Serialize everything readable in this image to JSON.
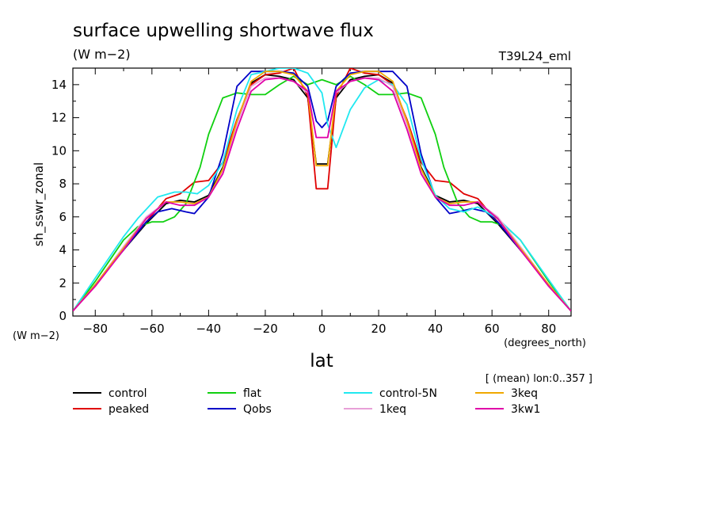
{
  "chart_data": {
    "type": "line",
    "title": "surface upwelling shortwave flux",
    "subtitle_units": "(W m−2)",
    "run_label": "T39L24_eml",
    "ylabel": "sh_sswr_zonal",
    "yunits": "(W m−2)",
    "xlabel": "lat",
    "xunits": "(degrees_north)",
    "note": "[ (mean) lon:0..357 ]",
    "xlim": [
      -87.9,
      87.9
    ],
    "ylim": [
      0,
      15
    ],
    "xticks": [
      -80,
      -60,
      -40,
      -20,
      0,
      20,
      40,
      60,
      80
    ],
    "yticks": [
      0,
      2,
      4,
      6,
      8,
      10,
      12,
      14
    ],
    "xtick_labels": [
      "−80",
      "−60",
      "−40",
      "−20",
      "0",
      "20",
      "40",
      "60",
      "80"
    ],
    "ytick_labels": [
      "0",
      "2",
      "4",
      "6",
      "8",
      "10",
      "12",
      "14"
    ],
    "series": [
      {
        "name": "control",
        "color": "#000000",
        "x": [
          -87.9,
          -80,
          -70,
          -62,
          -55,
          -50,
          -45,
          -40,
          -35,
          -30,
          -25,
          -20,
          -15,
          -10,
          -5,
          -2,
          0,
          2,
          5,
          10,
          15,
          20,
          25,
          30,
          35,
          40,
          45,
          50,
          55,
          62,
          70,
          80,
          87.9
        ],
        "y": [
          0.3,
          1.9,
          4.0,
          5.6,
          6.8,
          7.0,
          6.9,
          7.3,
          9.0,
          11.8,
          14.1,
          14.6,
          14.5,
          14.3,
          13.2,
          9.2,
          9.2,
          9.2,
          13.2,
          14.3,
          14.5,
          14.6,
          14.1,
          11.8,
          9.0,
          7.3,
          6.9,
          7.0,
          6.8,
          5.6,
          4.0,
          1.9,
          0.3
        ]
      },
      {
        "name": "peaked",
        "color": "#e00000",
        "x": [
          -87.9,
          -80,
          -70,
          -62,
          -55,
          -50,
          -45,
          -40,
          -35,
          -30,
          -25,
          -20,
          -15,
          -10,
          -5,
          -2,
          0,
          2,
          5,
          10,
          15,
          20,
          25,
          30,
          35,
          40,
          45,
          50,
          55,
          62,
          70,
          80,
          87.9
        ],
        "y": [
          0.3,
          1.9,
          4.0,
          5.7,
          7.1,
          7.4,
          8.1,
          8.2,
          9.3,
          11.9,
          14.0,
          14.6,
          14.7,
          15.0,
          13.3,
          7.7,
          7.7,
          7.7,
          13.3,
          15.0,
          14.7,
          14.6,
          14.0,
          11.9,
          9.3,
          8.2,
          8.1,
          7.4,
          7.1,
          5.7,
          4.0,
          1.9,
          0.3
        ]
      },
      {
        "name": "flat",
        "color": "#10d010",
        "x": [
          -87.9,
          -80,
          -70,
          -65,
          -60,
          -56,
          -52,
          -48,
          -43,
          -40,
          -35,
          -30,
          -25,
          -20,
          -15,
          -10,
          -5,
          0,
          5,
          10,
          15,
          20,
          25,
          30,
          35,
          40,
          43,
          48,
          52,
          56,
          60,
          65,
          70,
          80,
          87.9
        ],
        "y": [
          0.3,
          2.1,
          4.6,
          5.4,
          5.7,
          5.7,
          6.0,
          6.8,
          9.0,
          11.0,
          13.2,
          13.5,
          13.4,
          13.4,
          14.0,
          14.5,
          14.0,
          14.3,
          14.0,
          14.5,
          14.0,
          13.4,
          13.4,
          13.5,
          13.2,
          11.0,
          9.0,
          6.8,
          6.0,
          5.7,
          5.7,
          5.4,
          4.6,
          2.1,
          0.3
        ]
      },
      {
        "name": "Qobs",
        "color": "#0000c8",
        "x": [
          -87.9,
          -80,
          -70,
          -62,
          -58,
          -53,
          -48,
          -45,
          -40,
          -35,
          -30,
          -25,
          -20,
          -15,
          -10,
          -5,
          -2,
          0,
          2,
          5,
          10,
          15,
          20,
          25,
          30,
          35,
          40,
          45,
          48,
          53,
          58,
          62,
          70,
          80,
          87.9
        ],
        "y": [
          0.3,
          1.9,
          4.0,
          5.7,
          6.3,
          6.5,
          6.3,
          6.2,
          7.2,
          9.8,
          13.9,
          14.8,
          14.8,
          14.8,
          14.7,
          13.9,
          11.8,
          11.4,
          11.8,
          13.9,
          14.7,
          14.8,
          14.8,
          14.8,
          13.9,
          9.8,
          7.2,
          6.2,
          6.3,
          6.5,
          6.3,
          5.7,
          4.0,
          1.9,
          0.3
        ]
      },
      {
        "name": "control-5N",
        "color": "#20e8f0",
        "x": [
          -87.9,
          -80,
          -70,
          -65,
          -58,
          -52,
          -48,
          -44,
          -40,
          -35,
          -30,
          -25,
          -20,
          -15,
          -10,
          -5,
          0,
          2,
          5,
          10,
          15,
          20,
          25,
          30,
          35,
          40,
          45,
          50,
          55,
          62,
          70,
          80,
          87.9
        ],
        "y": [
          0.3,
          2.3,
          4.8,
          5.9,
          7.2,
          7.5,
          7.5,
          7.4,
          7.9,
          9.3,
          12.5,
          14.6,
          14.8,
          15.0,
          15.0,
          14.7,
          13.5,
          11.6,
          10.2,
          12.5,
          13.8,
          14.3,
          14.0,
          12.8,
          9.5,
          7.3,
          6.5,
          6.3,
          6.6,
          5.9,
          4.6,
          2.2,
          0.3
        ]
      },
      {
        "name": "1keq",
        "color": "#e8a0d8",
        "x": [
          -87.9,
          -80,
          -70,
          -62,
          -55,
          -50,
          -45,
          -40,
          -35,
          -30,
          -25,
          -20,
          -15,
          -10,
          -5,
          -2,
          0,
          2,
          5,
          10,
          15,
          20,
          25,
          30,
          35,
          40,
          45,
          50,
          55,
          62,
          70,
          80,
          87.9
        ],
        "y": [
          0.3,
          1.9,
          4.2,
          6.0,
          6.9,
          6.9,
          6.8,
          7.2,
          8.8,
          11.6,
          13.9,
          14.4,
          14.4,
          14.2,
          13.5,
          10.8,
          10.8,
          10.8,
          13.5,
          14.2,
          14.4,
          14.4,
          13.9,
          11.6,
          8.8,
          7.2,
          6.8,
          6.9,
          6.9,
          6.0,
          4.2,
          1.9,
          0.3
        ]
      },
      {
        "name": "3keq",
        "color": "#f0a800",
        "x": [
          -87.9,
          -80,
          -70,
          -62,
          -55,
          -50,
          -45,
          -40,
          -35,
          -30,
          -25,
          -20,
          -15,
          -10,
          -5,
          -2,
          0,
          2,
          5,
          10,
          15,
          20,
          25,
          30,
          35,
          40,
          45,
          50,
          55,
          62,
          70,
          80,
          87.9
        ],
        "y": [
          0.3,
          1.9,
          4.1,
          5.9,
          6.9,
          6.9,
          6.8,
          7.2,
          8.9,
          11.8,
          14.2,
          14.8,
          14.8,
          14.6,
          13.6,
          9.1,
          9.1,
          9.1,
          13.6,
          14.6,
          14.8,
          14.8,
          14.2,
          11.8,
          8.9,
          7.2,
          6.8,
          6.9,
          6.9,
          5.9,
          4.1,
          1.9,
          0.3
        ]
      },
      {
        "name": "3kw1",
        "color": "#e000a8",
        "x": [
          -87.9,
          -80,
          -70,
          -62,
          -55,
          -50,
          -45,
          -40,
          -35,
          -30,
          -25,
          -20,
          -15,
          -10,
          -5,
          -2,
          0,
          2,
          5,
          10,
          15,
          20,
          25,
          30,
          35,
          40,
          45,
          50,
          55,
          62,
          70,
          80,
          87.9
        ],
        "y": [
          0.3,
          1.8,
          4.0,
          5.9,
          6.9,
          6.7,
          6.7,
          7.2,
          8.6,
          11.3,
          13.6,
          14.3,
          14.4,
          14.2,
          13.6,
          10.8,
          10.8,
          10.8,
          13.6,
          14.2,
          14.4,
          14.3,
          13.6,
          11.3,
          8.6,
          7.2,
          6.7,
          6.7,
          6.9,
          5.9,
          4.0,
          1.8,
          0.3
        ]
      }
    ]
  }
}
